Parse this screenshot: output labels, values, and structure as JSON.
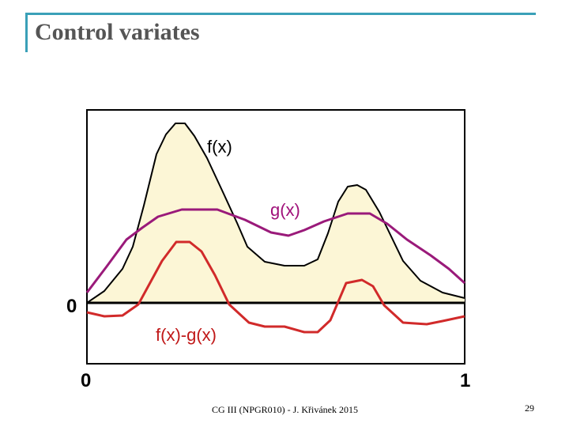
{
  "slide": {
    "title": "Control variates",
    "footer": "CG III (NPGR010) - J. Křivánek 2015",
    "page_number": "29"
  },
  "diagram": {
    "labels": {
      "f": "f(x)",
      "g": "g(x)",
      "diff": "f(x)-g(x)",
      "y_zero": "0",
      "x_zero": "0",
      "x_one": "1"
    },
    "colors": {
      "f_curve": "#000000",
      "f_fill": "#fcf6d6",
      "g_curve": "#9a1a7a",
      "diff_curve": "#d12a2a",
      "axis": "#000000"
    }
  }
}
